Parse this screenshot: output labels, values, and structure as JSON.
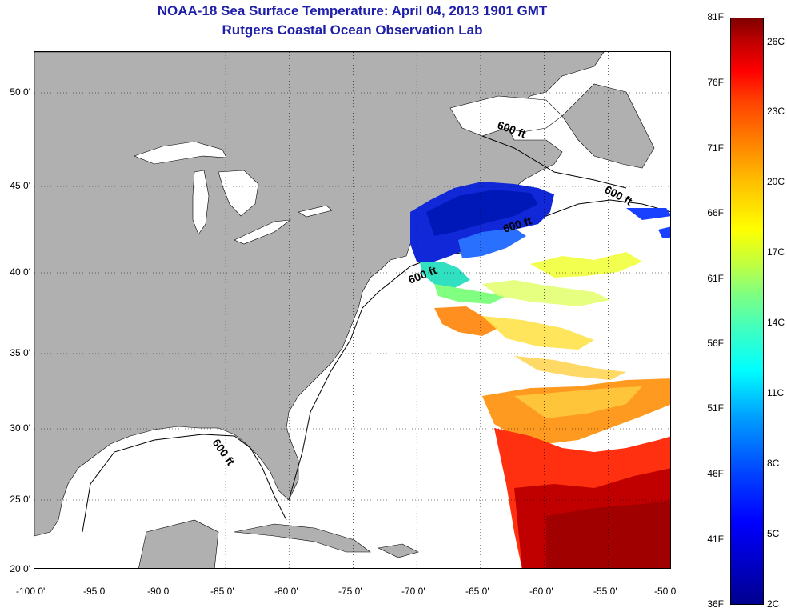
{
  "title": {
    "line1": "NOAA-18 Sea Surface Temperature:  April 04, 2013 1901 GMT",
    "line2": "Rutgers Coastal Ocean Observation Lab"
  },
  "map": {
    "lon_range": [
      -100,
      -50
    ],
    "lat_range": [
      20,
      52.5
    ],
    "lon_ticks": [
      "-100 0'",
      "-95 0'",
      "-90 0'",
      "-85 0'",
      "-80 0'",
      "-75 0'",
      "-70 0'",
      "-65 0'",
      "-60 0'",
      "-55 0'",
      "-50 0'"
    ],
    "lat_ticks": [
      {
        "value": 50,
        "label": "50 0'"
      },
      {
        "value": 45,
        "label": "45 0'"
      },
      {
        "value": 40,
        "label": "40 0'"
      },
      {
        "value": 35,
        "label": "35 0'"
      },
      {
        "value": 30,
        "label": "30 0'"
      },
      {
        "value": 25,
        "label": "25 0'"
      },
      {
        "value": 20,
        "label": "20 0'"
      }
    ],
    "isobath_labels": [
      {
        "text": "600 ft",
        "lon": -62,
        "lat": 48.5
      },
      {
        "text": "600 ft",
        "lon": -53,
        "lat": 44.5
      },
      {
        "text": "600 ft",
        "lon": -61,
        "lat": 42.5
      },
      {
        "text": "600 ft",
        "lon": -69.5,
        "lat": 39.8
      },
      {
        "text": "600 ft",
        "lon": -84.5,
        "lat": 27.5
      }
    ],
    "colors": {
      "land": "#b0b0b0",
      "ocean": "#ffffff",
      "grid": "#000000"
    }
  },
  "colorbar": {
    "f_labels": [
      "81F",
      "76F",
      "71F",
      "66F",
      "61F",
      "56F",
      "51F",
      "46F",
      "41F",
      "36F"
    ],
    "c_labels": [
      "26C",
      "23C",
      "20C",
      "17C",
      "14C",
      "11C",
      "8C",
      "5C",
      "2C"
    ]
  }
}
